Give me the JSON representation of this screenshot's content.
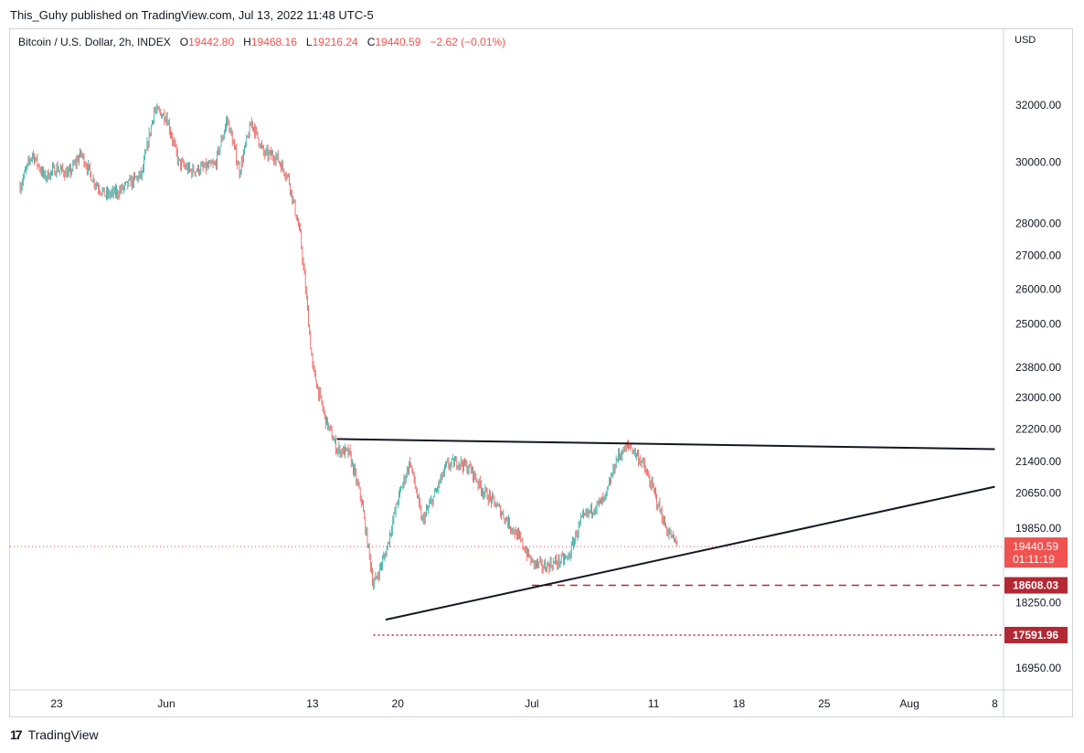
{
  "header": {
    "publisher": "This_Guhy published on TradingView.com, Jul 13, 2022 11:48 UTC-5"
  },
  "legend": {
    "symbol": "Bitcoin / U.S. Dollar, 2h, INDEX",
    "open_label": "O",
    "open": "19442.80",
    "high_label": "H",
    "high": "19468.16",
    "low_label": "L",
    "low": "19216.24",
    "close_label": "C",
    "close": "19440.59",
    "change": "−2.62 (−0.01%)"
  },
  "axis": {
    "currency": "USD"
  },
  "footer": {
    "brand": "TradingView"
  },
  "colors": {
    "up": "#26a69a",
    "down": "#ef5350",
    "trendline": "#131722",
    "level": "#b22833",
    "price_badge": "#ef5350"
  },
  "chart_data": {
    "type": "candlestick",
    "symbol": "BTCUSD",
    "interval": "2h",
    "y_scale": "log",
    "y_ticks": [
      16950,
      18250,
      19850,
      20650,
      21400,
      22200,
      23000,
      23800,
      25000,
      26000,
      27000,
      28000,
      30000,
      32000
    ],
    "y_tick_labels": [
      "16950.00",
      "18250.00",
      "19850.00",
      "20650.00",
      "21400.00",
      "22200.00",
      "23000.00",
      "23800.00",
      "25000.00",
      "26000.00",
      "27000.00",
      "28000.00",
      "30000.00",
      "32000.00"
    ],
    "x_ticks": [
      "23",
      "Jun",
      "13",
      "20",
      "Jul",
      "11",
      "18",
      "25",
      "Aug",
      "8"
    ],
    "x_tick_dates": [
      "2022-05-23",
      "2022-06-01",
      "2022-06-13",
      "2022-06-20",
      "2022-07-01",
      "2022-07-11",
      "2022-07-18",
      "2022-07-25",
      "2022-08-01",
      "2022-08-08"
    ],
    "path": [
      [
        "2022-05-20",
        29200
      ],
      [
        "2022-05-21",
        30300
      ],
      [
        "2022-05-22",
        29500
      ],
      [
        "2022-05-23",
        29800
      ],
      [
        "2022-05-24",
        29600
      ],
      [
        "2022-05-25",
        30300
      ],
      [
        "2022-05-26",
        29400
      ],
      [
        "2022-05-27",
        28900
      ],
      [
        "2022-05-28",
        29000
      ],
      [
        "2022-05-29",
        29300
      ],
      [
        "2022-05-30",
        29600
      ],
      [
        "2022-05-31",
        31800
      ],
      [
        "2022-06-01",
        31600
      ],
      [
        "2022-06-02",
        30000
      ],
      [
        "2022-06-03",
        29700
      ],
      [
        "2022-06-04",
        29800
      ],
      [
        "2022-06-05",
        29900
      ],
      [
        "2022-06-06",
        31500
      ],
      [
        "2022-06-07",
        29700
      ],
      [
        "2022-06-08",
        31400
      ],
      [
        "2022-06-09",
        30300
      ],
      [
        "2022-06-10",
        30200
      ],
      [
        "2022-06-11",
        29500
      ],
      [
        "2022-06-12",
        27600
      ],
      [
        "2022-06-13",
        23800
      ],
      [
        "2022-06-14",
        22500
      ],
      [
        "2022-06-15",
        21700
      ],
      [
        "2022-06-16",
        21600
      ],
      [
        "2022-06-17",
        20500
      ],
      [
        "2022-06-18",
        18600
      ],
      [
        "2022-06-19",
        19300
      ],
      [
        "2022-06-20",
        20500
      ],
      [
        "2022-06-21",
        21400
      ],
      [
        "2022-06-22",
        20000
      ],
      [
        "2022-06-23",
        20600
      ],
      [
        "2022-06-24",
        21300
      ],
      [
        "2022-06-25",
        21400
      ],
      [
        "2022-06-26",
        21200
      ],
      [
        "2022-06-27",
        20700
      ],
      [
        "2022-06-28",
        20400
      ],
      [
        "2022-06-29",
        20000
      ],
      [
        "2022-06-30",
        19600
      ],
      [
        "2022-07-01",
        19100
      ],
      [
        "2022-07-02",
        19000
      ],
      [
        "2022-07-03",
        19100
      ],
      [
        "2022-07-04",
        19200
      ],
      [
        "2022-07-05",
        20000
      ],
      [
        "2022-07-06",
        20300
      ],
      [
        "2022-07-07",
        20500
      ],
      [
        "2022-07-08",
        21500
      ],
      [
        "2022-07-09",
        21800
      ],
      [
        "2022-07-10",
        21400
      ],
      [
        "2022-07-11",
        20700
      ],
      [
        "2022-07-12",
        19850
      ],
      [
        "2022-07-13",
        19440
      ]
    ],
    "trendlines": [
      {
        "from": [
          "2022-06-15",
          21950
        ],
        "to": [
          "2022-08-08",
          21700
        ],
        "name": "resistance"
      },
      {
        "from": [
          "2022-06-19",
          17900
        ],
        "to": [
          "2022-08-08",
          20800
        ],
        "name": "support"
      }
    ],
    "levels": [
      {
        "value": 18608.03,
        "label": "18608.03",
        "style": "dashed",
        "from": "2022-07-01"
      },
      {
        "value": 17591.96,
        "label": "17591.96",
        "style": "dotted",
        "from": "2022-06-18"
      }
    ],
    "last_price": {
      "value": 19440.59,
      "label": "19440.59",
      "countdown": "01:11:19"
    }
  }
}
